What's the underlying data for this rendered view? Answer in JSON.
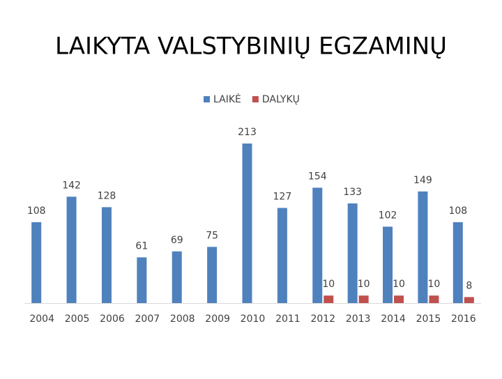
{
  "chart_data": {
    "type": "bar",
    "title": "LAIKYTA VALSTYBINIŲ EGZAMINŲ",
    "categories": [
      "2004",
      "2005",
      "2006",
      "2007",
      "2008",
      "2009",
      "2010",
      "2011",
      "2012",
      "2013",
      "2014",
      "2015",
      "2016"
    ],
    "series": [
      {
        "name": "LAIKĖ",
        "color": "#4f81bd",
        "values": [
          108,
          142,
          128,
          61,
          69,
          75,
          213,
          127,
          154,
          133,
          102,
          149,
          108
        ]
      },
      {
        "name": "DALYKŲ",
        "color": "#c0504d",
        "values": [
          null,
          null,
          null,
          null,
          null,
          null,
          null,
          null,
          10,
          10,
          10,
          10,
          8
        ]
      }
    ],
    "legend": "top"
  }
}
